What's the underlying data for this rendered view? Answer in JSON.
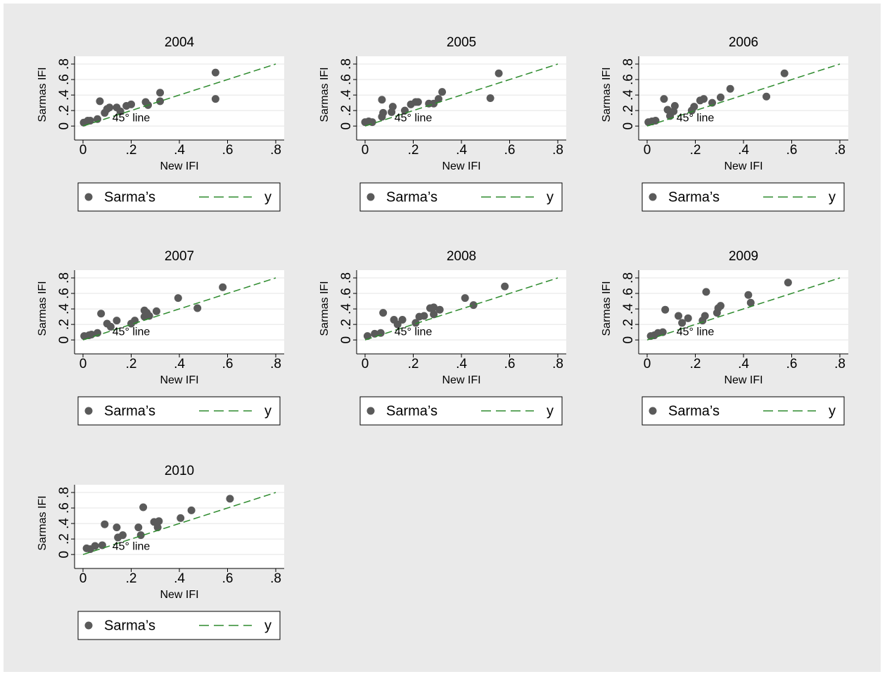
{
  "chart_data": [
    {
      "type": "scatter",
      "title": "2004",
      "xlabel": "New IFI",
      "ylabel": "Sarmas IFI",
      "annotation": "45° line",
      "xlim": [
        -0.035,
        0.835
      ],
      "ylim": [
        -0.18,
        0.9
      ],
      "xticks": [
        0,
        {
          "value": 0.2,
          "label": ".2"
        },
        {
          "value": 0.4,
          "label": ".4"
        },
        {
          "value": 0.6,
          "label": ".6"
        },
        {
          "value": 0.8,
          "label": ".8"
        }
      ],
      "yticks": [
        0,
        {
          "value": 0.2,
          "label": ".2"
        },
        {
          "value": 0.4,
          "label": ".4"
        },
        {
          "value": 0.6,
          "label": ".6"
        },
        {
          "value": 0.8,
          "label": ".8"
        }
      ],
      "grid": true,
      "series": [
        {
          "name": "Sarma’s",
          "color": "#5a5a5a",
          "x": [
            0.003,
            0.02,
            0.03,
            0.06,
            0.07,
            0.09,
            0.1,
            0.11,
            0.14,
            0.155,
            0.18,
            0.2,
            0.26,
            0.27,
            0.32,
            0.32,
            0.55,
            0.55
          ],
          "values": [
            0.045,
            0.07,
            0.07,
            0.09,
            0.32,
            0.17,
            0.22,
            0.24,
            0.24,
            0.19,
            0.26,
            0.28,
            0.31,
            0.27,
            0.43,
            0.32,
            0.69,
            0.35
          ]
        },
        {
          "name": "y",
          "color": "#2e8b2e",
          "dashed": true,
          "x": [
            0,
            0.8
          ],
          "values": [
            0,
            0.8
          ]
        }
      ]
    },
    {
      "type": "scatter",
      "title": "2005",
      "xlabel": "New IFI",
      "ylabel": "Sarmas IFI",
      "annotation": "45° line",
      "xlim": [
        -0.035,
        0.835
      ],
      "ylim": [
        -0.18,
        0.9
      ],
      "xticks": [
        0,
        {
          "value": 0.2,
          "label": ".2"
        },
        {
          "value": 0.4,
          "label": ".4"
        },
        {
          "value": 0.6,
          "label": ".6"
        },
        {
          "value": 0.8,
          "label": ".8"
        }
      ],
      "yticks": [
        0,
        {
          "value": 0.2,
          "label": ".2"
        },
        {
          "value": 0.4,
          "label": ".4"
        },
        {
          "value": 0.6,
          "label": ".6"
        },
        {
          "value": 0.8,
          "label": ".8"
        }
      ],
      "grid": true,
      "series": [
        {
          "name": "Sarma’s",
          "color": "#5a5a5a",
          "x": [
            0,
            0.015,
            0.03,
            0.07,
            0.07,
            0.075,
            0.11,
            0.115,
            0.165,
            0.19,
            0.21,
            0.22,
            0.265,
            0.285,
            0.305,
            0.32,
            0.52,
            0.555
          ],
          "values": [
            0.05,
            0.06,
            0.05,
            0.34,
            0.12,
            0.17,
            0.18,
            0.25,
            0.2,
            0.28,
            0.31,
            0.31,
            0.29,
            0.29,
            0.35,
            0.44,
            0.36,
            0.68
          ]
        },
        {
          "name": "y",
          "color": "#2e8b2e",
          "dashed": true,
          "x": [
            0,
            0.8
          ],
          "values": [
            0,
            0.8
          ]
        }
      ]
    },
    {
      "type": "scatter",
      "title": "2006",
      "xlabel": "New IFI",
      "ylabel": "Sarmas IFI",
      "annotation": "45° line",
      "xlim": [
        -0.035,
        0.835
      ],
      "ylim": [
        -0.18,
        0.9
      ],
      "xticks": [
        0,
        {
          "value": 0.2,
          "label": ".2"
        },
        {
          "value": 0.4,
          "label": ".4"
        },
        {
          "value": 0.6,
          "label": ".6"
        },
        {
          "value": 0.8,
          "label": ".8"
        }
      ],
      "yticks": [
        0,
        {
          "value": 0.2,
          "label": ".2"
        },
        {
          "value": 0.4,
          "label": ".4"
        },
        {
          "value": 0.6,
          "label": ".6"
        },
        {
          "value": 0.8,
          "label": ".8"
        }
      ],
      "grid": true,
      "series": [
        {
          "name": "Sarma’s",
          "color": "#5a5a5a",
          "x": [
            0.005,
            0.02,
            0.035,
            0.07,
            0.085,
            0.095,
            0.11,
            0.115,
            0.185,
            0.195,
            0.22,
            0.235,
            0.27,
            0.305,
            0.345,
            0.495,
            0.57
          ],
          "values": [
            0.05,
            0.06,
            0.07,
            0.35,
            0.21,
            0.13,
            0.19,
            0.26,
            0.2,
            0.25,
            0.33,
            0.35,
            0.3,
            0.37,
            0.48,
            0.38,
            0.68
          ]
        },
        {
          "name": "y",
          "color": "#2e8b2e",
          "dashed": true,
          "x": [
            0,
            0.8
          ],
          "values": [
            0,
            0.8
          ]
        }
      ]
    },
    {
      "type": "scatter",
      "title": "2007",
      "xlabel": "New IFI",
      "ylabel": "Sarmas IFI",
      "annotation": "45° line",
      "xlim": [
        -0.035,
        0.835
      ],
      "ylim": [
        -0.18,
        0.9
      ],
      "xticks": [
        0,
        {
          "value": 0.2,
          "label": ".2"
        },
        {
          "value": 0.4,
          "label": ".4"
        },
        {
          "value": 0.6,
          "label": ".6"
        },
        {
          "value": 0.8,
          "label": ".8"
        }
      ],
      "yticks": [
        0,
        {
          "value": 0.2,
          "label": ".2"
        },
        {
          "value": 0.4,
          "label": ".4"
        },
        {
          "value": 0.6,
          "label": ".6"
        },
        {
          "value": 0.8,
          "label": ".8"
        }
      ],
      "grid": true,
      "series": [
        {
          "name": "Sarma’s",
          "color": "#5a5a5a",
          "x": [
            0.005,
            0.025,
            0.035,
            0.06,
            0.075,
            0.1,
            0.115,
            0.14,
            0.2,
            0.215,
            0.255,
            0.255,
            0.265,
            0.275,
            0.305,
            0.395,
            0.475,
            0.58
          ],
          "values": [
            0.05,
            0.06,
            0.07,
            0.09,
            0.34,
            0.21,
            0.17,
            0.25,
            0.21,
            0.25,
            0.38,
            0.3,
            0.35,
            0.31,
            0.37,
            0.54,
            0.41,
            0.68
          ]
        },
        {
          "name": "y",
          "color": "#2e8b2e",
          "dashed": true,
          "x": [
            0,
            0.8
          ],
          "values": [
            0,
            0.8
          ]
        }
      ]
    },
    {
      "type": "scatter",
      "title": "2008",
      "xlabel": "New IFI",
      "ylabel": "Sarmas IFI",
      "annotation": "45° line",
      "xlim": [
        -0.035,
        0.835
      ],
      "ylim": [
        -0.18,
        0.9
      ],
      "xticks": [
        0,
        {
          "value": 0.2,
          "label": ".2"
        },
        {
          "value": 0.4,
          "label": ".4"
        },
        {
          "value": 0.6,
          "label": ".6"
        },
        {
          "value": 0.8,
          "label": ".8"
        }
      ],
      "yticks": [
        0,
        {
          "value": 0.2,
          "label": ".2"
        },
        {
          "value": 0.4,
          "label": ".4"
        },
        {
          "value": 0.6,
          "label": ".6"
        },
        {
          "value": 0.8,
          "label": ".8"
        }
      ],
      "grid": true,
      "series": [
        {
          "name": "Sarma’s",
          "color": "#5a5a5a",
          "x": [
            0.01,
            0.04,
            0.065,
            0.075,
            0.12,
            0.135,
            0.155,
            0.21,
            0.225,
            0.245,
            0.27,
            0.285,
            0.285,
            0.31,
            0.415,
            0.45,
            0.58
          ],
          "values": [
            0.05,
            0.08,
            0.09,
            0.35,
            0.26,
            0.2,
            0.26,
            0.22,
            0.3,
            0.31,
            0.41,
            0.42,
            0.33,
            0.39,
            0.54,
            0.45,
            0.69
          ]
        },
        {
          "name": "y",
          "color": "#2e8b2e",
          "dashed": true,
          "x": [
            0,
            0.8
          ],
          "values": [
            0,
            0.8
          ]
        }
      ]
    },
    {
      "type": "scatter",
      "title": "2009",
      "xlabel": "New IFI",
      "ylabel": "Sarmas IFI",
      "annotation": "45° line",
      "xlim": [
        -0.035,
        0.835
      ],
      "ylim": [
        -0.18,
        0.9
      ],
      "xticks": [
        0,
        {
          "value": 0.2,
          "label": ".2"
        },
        {
          "value": 0.4,
          "label": ".4"
        },
        {
          "value": 0.6,
          "label": ".6"
        },
        {
          "value": 0.8,
          "label": ".8"
        }
      ],
      "yticks": [
        0,
        {
          "value": 0.2,
          "label": ".2"
        },
        {
          "value": 0.4,
          "label": ".4"
        },
        {
          "value": 0.6,
          "label": ".6"
        },
        {
          "value": 0.8,
          "label": ".8"
        }
      ],
      "grid": true,
      "series": [
        {
          "name": "Sarma’s",
          "color": "#5a5a5a",
          "x": [
            0.015,
            0.03,
            0.045,
            0.065,
            0.075,
            0.13,
            0.145,
            0.17,
            0.23,
            0.24,
            0.245,
            0.29,
            0.295,
            0.305,
            0.42,
            0.43,
            0.585
          ],
          "values": [
            0.05,
            0.06,
            0.09,
            0.1,
            0.39,
            0.31,
            0.22,
            0.28,
            0.25,
            0.31,
            0.62,
            0.35,
            0.41,
            0.44,
            0.58,
            0.48,
            0.74
          ]
        },
        {
          "name": "y",
          "color": "#2e8b2e",
          "dashed": true,
          "x": [
            0,
            0.8
          ],
          "values": [
            0,
            0.8
          ]
        }
      ]
    },
    {
      "type": "scatter",
      "title": "2010",
      "xlabel": "New IFI",
      "ylabel": "Sarmas IFI",
      "annotation": "45° line",
      "xlim": [
        -0.035,
        0.835
      ],
      "ylim": [
        -0.18,
        0.9
      ],
      "xticks": [
        0,
        {
          "value": 0.2,
          "label": ".2"
        },
        {
          "value": 0.4,
          "label": ".4"
        },
        {
          "value": 0.6,
          "label": ".6"
        },
        {
          "value": 0.8,
          "label": ".8"
        }
      ],
      "yticks": [
        0,
        {
          "value": 0.2,
          "label": ".2"
        },
        {
          "value": 0.4,
          "label": ".4"
        },
        {
          "value": 0.6,
          "label": ".6"
        },
        {
          "value": 0.8,
          "label": ".8"
        }
      ],
      "grid": true,
      "series": [
        {
          "name": "Sarma’s",
          "color": "#5a5a5a",
          "x": [
            0.015,
            0.03,
            0.05,
            0.08,
            0.09,
            0.14,
            0.145,
            0.165,
            0.23,
            0.24,
            0.25,
            0.295,
            0.315,
            0.31,
            0.405,
            0.45,
            0.61
          ],
          "values": [
            0.08,
            0.07,
            0.11,
            0.12,
            0.39,
            0.35,
            0.22,
            0.25,
            0.35,
            0.25,
            0.61,
            0.42,
            0.43,
            0.35,
            0.47,
            0.57,
            0.72
          ]
        },
        {
          "name": "y",
          "color": "#2e8b2e",
          "dashed": true,
          "x": [
            0,
            0.8
          ],
          "values": [
            0,
            0.8
          ]
        }
      ]
    }
  ]
}
